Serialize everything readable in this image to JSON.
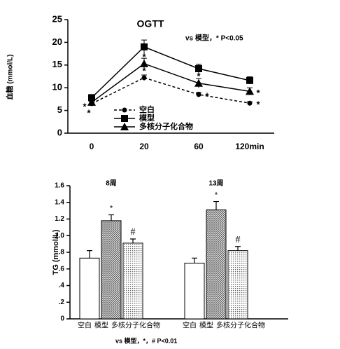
{
  "chart_data": [
    {
      "type": "line",
      "title": "OGTT",
      "annotation": "vs 模型，* P<0.05",
      "y_label": "血糖 (mmol/L)",
      "categories": [
        "0",
        "20",
        "60",
        "120min"
      ],
      "ylim": [
        0,
        25
      ],
      "yticks": [
        0,
        5,
        10,
        15,
        20,
        25
      ],
      "series": [
        {
          "name": "空白",
          "color": "#000000",
          "marker": "circle",
          "dash": true,
          "values": [
            6.5,
            12.2,
            8.5,
            6.6
          ],
          "errors": [
            0.4,
            0.6,
            0.5,
            0.3
          ],
          "labels": [
            "*",
            "*",
            "*",
            "*"
          ]
        },
        {
          "name": "模型",
          "color": "#000000",
          "marker": "square",
          "dash": false,
          "values": [
            7.8,
            19.0,
            14.2,
            11.6
          ],
          "errors": [
            0.7,
            1.5,
            1.0,
            0.8
          ],
          "labels": [
            null,
            null,
            null,
            null
          ]
        },
        {
          "name": "多核分子化合物",
          "color": "#000000",
          "marker": "triangle",
          "dash": false,
          "values": [
            6.8,
            15.3,
            11.0,
            9.2
          ],
          "errors": [
            0.6,
            1.2,
            1.0,
            0.8
          ],
          "labels": [
            "*",
            "*",
            "*",
            "*"
          ]
        }
      ]
    },
    {
      "type": "bar",
      "annotation": "vs 模型，*，# P<0.01",
      "y_label": "TG (mmol/L)",
      "categories": [
        "8周",
        "13周"
      ],
      "ylim": [
        0,
        1.6
      ],
      "yticks": [
        0,
        {
          "value": 0.2,
          "label": ".2"
        },
        {
          "value": 0.4,
          "label": ".4"
        },
        {
          "value": 0.6,
          "label": ".6"
        },
        {
          "value": 0.8,
          "label": ".8"
        },
        {
          "value": 1.0,
          "label": "1.0"
        },
        {
          "value": 1.2,
          "label": "1.2"
        },
        {
          "value": 1.4,
          "label": "1.4"
        },
        {
          "value": 1.6,
          "label": "1.6"
        }
      ],
      "series": [
        {
          "name": "空白",
          "fill": "white",
          "values": [
            0.73,
            0.67
          ],
          "errors": [
            0.09,
            0.06
          ],
          "labels": [
            null,
            null
          ]
        },
        {
          "name": "模型",
          "fill": "hatch",
          "values": [
            1.18,
            1.31
          ],
          "errors": [
            0.07,
            0.1
          ],
          "labels": [
            "*",
            "*"
          ]
        },
        {
          "name": "多核分子化合物",
          "fill": "dots",
          "values": [
            0.91,
            0.82
          ],
          "errors": [
            0.05,
            0.05
          ],
          "labels": [
            "#",
            "#"
          ]
        }
      ]
    }
  ]
}
